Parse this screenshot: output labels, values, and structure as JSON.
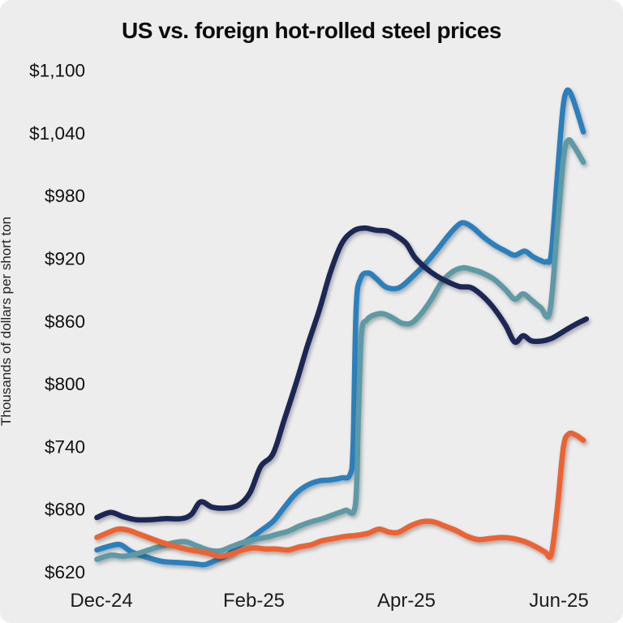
{
  "frame": {
    "background": "#ededed"
  },
  "chart": {
    "title": "US vs. foreign hot-rolled steel prices",
    "y_axis_title": "Thousands of dollars per short ton"
  },
  "chart_data": {
    "type": "line",
    "title": "US vs. foreign hot-rolled steel prices",
    "ylabel": "Thousands of dollars per short ton",
    "xlabel": "",
    "x_unit": "months since Dec-24 tick",
    "grid": false,
    "legend": "none",
    "xlim": [
      -0.1,
      6.45
    ],
    "ylim": [
      620,
      1100
    ],
    "x_ticks": [
      {
        "x": 0,
        "label": "Dec-24"
      },
      {
        "x": 2,
        "label": "Feb-25"
      },
      {
        "x": 4,
        "label": "Apr-25"
      },
      {
        "x": 6,
        "label": "Jun-25"
      }
    ],
    "y_ticks": [
      {
        "value": 620,
        "label": "$620"
      },
      {
        "value": 680,
        "label": "$680"
      },
      {
        "value": 740,
        "label": "$740"
      },
      {
        "value": 800,
        "label": "$800"
      },
      {
        "value": 860,
        "label": "$860"
      },
      {
        "value": 920,
        "label": "$920"
      },
      {
        "value": 980,
        "label": "$980"
      },
      {
        "value": 1040,
        "label": "$1,040"
      },
      {
        "value": 1100,
        "label": "$1,100"
      }
    ],
    "series": [
      {
        "name": "blue",
        "color": "#2a80be",
        "stroke_width": 6.5,
        "points": [
          [
            -0.06,
            641
          ],
          [
            0.12,
            645
          ],
          [
            0.25,
            646
          ],
          [
            0.4,
            639
          ],
          [
            0.6,
            634
          ],
          [
            0.8,
            630
          ],
          [
            1.0,
            629
          ],
          [
            1.2,
            628
          ],
          [
            1.35,
            627
          ],
          [
            1.5,
            631
          ],
          [
            1.65,
            636
          ],
          [
            1.8,
            645
          ],
          [
            1.95,
            652
          ],
          [
            2.1,
            660
          ],
          [
            2.26,
            669
          ],
          [
            2.4,
            682
          ],
          [
            2.55,
            695
          ],
          [
            2.7,
            703
          ],
          [
            2.85,
            707
          ],
          [
            3.0,
            708
          ],
          [
            3.15,
            710
          ],
          [
            3.26,
            713
          ],
          [
            3.3,
            740
          ],
          [
            3.34,
            872
          ],
          [
            3.4,
            901
          ],
          [
            3.5,
            906
          ],
          [
            3.6,
            901
          ],
          [
            3.72,
            893
          ],
          [
            3.85,
            891
          ],
          [
            3.95,
            894
          ],
          [
            4.1,
            904
          ],
          [
            4.25,
            915
          ],
          [
            4.4,
            928
          ],
          [
            4.55,
            942
          ],
          [
            4.68,
            952
          ],
          [
            4.76,
            954
          ],
          [
            4.88,
            949
          ],
          [
            5.0,
            941
          ],
          [
            5.15,
            933
          ],
          [
            5.3,
            927
          ],
          [
            5.42,
            923
          ],
          [
            5.55,
            927
          ],
          [
            5.65,
            922
          ],
          [
            5.76,
            918
          ],
          [
            5.84,
            917
          ],
          [
            5.9,
            925
          ],
          [
            5.98,
            1000
          ],
          [
            6.05,
            1062
          ],
          [
            6.1,
            1080
          ],
          [
            6.16,
            1077
          ],
          [
            6.24,
            1060
          ],
          [
            6.32,
            1041
          ]
        ]
      },
      {
        "name": "teal",
        "color": "#5c9aa6",
        "stroke_width": 6.5,
        "points": [
          [
            -0.06,
            632
          ],
          [
            0.12,
            636
          ],
          [
            0.28,
            635
          ],
          [
            0.45,
            637
          ],
          [
            0.62,
            641
          ],
          [
            0.8,
            645
          ],
          [
            0.95,
            648
          ],
          [
            1.1,
            649
          ],
          [
            1.25,
            645
          ],
          [
            1.4,
            641
          ],
          [
            1.55,
            640
          ],
          [
            1.7,
            644
          ],
          [
            1.85,
            648
          ],
          [
            2.0,
            651
          ],
          [
            2.15,
            653
          ],
          [
            2.3,
            656
          ],
          [
            2.45,
            659
          ],
          [
            2.6,
            664
          ],
          [
            2.75,
            668
          ],
          [
            2.9,
            671
          ],
          [
            3.05,
            675
          ],
          [
            3.2,
            679
          ],
          [
            3.33,
            684
          ],
          [
            3.37,
            770
          ],
          [
            3.41,
            848
          ],
          [
            3.48,
            861
          ],
          [
            3.58,
            866
          ],
          [
            3.7,
            867
          ],
          [
            3.82,
            863
          ],
          [
            3.94,
            858
          ],
          [
            4.06,
            858
          ],
          [
            4.18,
            866
          ],
          [
            4.32,
            880
          ],
          [
            4.46,
            897
          ],
          [
            4.6,
            907
          ],
          [
            4.74,
            911
          ],
          [
            4.88,
            909
          ],
          [
            5.0,
            906
          ],
          [
            5.15,
            900
          ],
          [
            5.3,
            890
          ],
          [
            5.42,
            881
          ],
          [
            5.53,
            886
          ],
          [
            5.64,
            880
          ],
          [
            5.76,
            873
          ],
          [
            5.88,
            869
          ],
          [
            5.98,
            950
          ],
          [
            6.06,
            1016
          ],
          [
            6.12,
            1033
          ],
          [
            6.2,
            1027
          ],
          [
            6.32,
            1012
          ]
        ]
      },
      {
        "name": "orange",
        "color": "#ee6231",
        "stroke_width": 6.5,
        "points": [
          [
            -0.06,
            653
          ],
          [
            0.1,
            658
          ],
          [
            0.22,
            661
          ],
          [
            0.35,
            660
          ],
          [
            0.5,
            656
          ],
          [
            0.65,
            652
          ],
          [
            0.8,
            648
          ],
          [
            0.95,
            645
          ],
          [
            1.1,
            642
          ],
          [
            1.25,
            640
          ],
          [
            1.4,
            638
          ],
          [
            1.55,
            635
          ],
          [
            1.7,
            637
          ],
          [
            1.85,
            641
          ],
          [
            2.0,
            643
          ],
          [
            2.15,
            642
          ],
          [
            2.3,
            642
          ],
          [
            2.45,
            641
          ],
          [
            2.6,
            644
          ],
          [
            2.75,
            646
          ],
          [
            2.9,
            650
          ],
          [
            3.05,
            652
          ],
          [
            3.2,
            654
          ],
          [
            3.35,
            655
          ],
          [
            3.5,
            657
          ],
          [
            3.64,
            661
          ],
          [
            3.78,
            658
          ],
          [
            3.9,
            658
          ],
          [
            4.05,
            664
          ],
          [
            4.2,
            668
          ],
          [
            4.35,
            668
          ],
          [
            4.5,
            664
          ],
          [
            4.64,
            660
          ],
          [
            4.8,
            654
          ],
          [
            4.94,
            651
          ],
          [
            5.1,
            652
          ],
          [
            5.25,
            653
          ],
          [
            5.4,
            652
          ],
          [
            5.55,
            649
          ],
          [
            5.7,
            644
          ],
          [
            5.82,
            639
          ],
          [
            5.9,
            637
          ],
          [
            5.98,
            682
          ],
          [
            6.06,
            740
          ],
          [
            6.13,
            752
          ],
          [
            6.22,
            751
          ],
          [
            6.32,
            746
          ]
        ]
      },
      {
        "name": "navy",
        "color": "#1b2757",
        "stroke_width": 6.5,
        "points": [
          [
            -0.06,
            672
          ],
          [
            0.12,
            677
          ],
          [
            0.28,
            673
          ],
          [
            0.45,
            670
          ],
          [
            0.65,
            670
          ],
          [
            0.85,
            671
          ],
          [
            1.05,
            671
          ],
          [
            1.18,
            675
          ],
          [
            1.3,
            687
          ],
          [
            1.45,
            682
          ],
          [
            1.62,
            681
          ],
          [
            1.8,
            684
          ],
          [
            1.95,
            696
          ],
          [
            2.09,
            721
          ],
          [
            2.25,
            733
          ],
          [
            2.4,
            766
          ],
          [
            2.56,
            802
          ],
          [
            2.7,
            836
          ],
          [
            2.86,
            871
          ],
          [
            3.0,
            906
          ],
          [
            3.15,
            934
          ],
          [
            3.3,
            946
          ],
          [
            3.45,
            949
          ],
          [
            3.6,
            947
          ],
          [
            3.75,
            946
          ],
          [
            3.88,
            941
          ],
          [
            4.0,
            934
          ],
          [
            4.11,
            921
          ],
          [
            4.25,
            911
          ],
          [
            4.4,
            903
          ],
          [
            4.56,
            897
          ],
          [
            4.7,
            893
          ],
          [
            4.85,
            892
          ],
          [
            5.0,
            884
          ],
          [
            5.15,
            872
          ],
          [
            5.3,
            856
          ],
          [
            5.42,
            840
          ],
          [
            5.53,
            846
          ],
          [
            5.64,
            841
          ],
          [
            5.78,
            841
          ],
          [
            5.92,
            844
          ],
          [
            6.08,
            851
          ],
          [
            6.22,
            857
          ],
          [
            6.36,
            862
          ]
        ]
      }
    ]
  }
}
